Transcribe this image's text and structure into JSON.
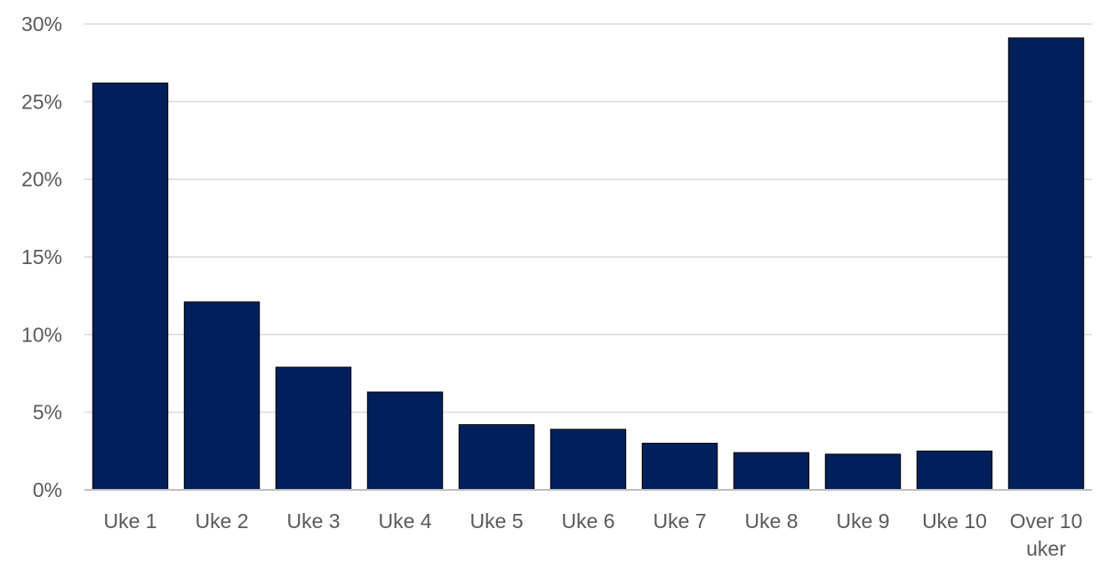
{
  "chart_data": {
    "type": "bar",
    "categories": [
      "Uke 1",
      "Uke 2",
      "Uke 3",
      "Uke 4",
      "Uke 5",
      "Uke 6",
      "Uke 7",
      "Uke 8",
      "Uke 9",
      "Uke 10",
      "Over 10 uker"
    ],
    "series": [
      {
        "values": [
          26.2,
          12.1,
          7.9,
          6.3,
          4.2,
          3.9,
          3.0,
          2.4,
          2.3,
          2.5,
          29.1
        ],
        "color": "#00205b"
      }
    ],
    "ylim": [
      0,
      30
    ],
    "yticks": [
      0,
      5,
      10,
      15,
      20,
      25,
      30
    ],
    "ytick_labels": [
      "0%",
      "5%",
      "10%",
      "15%",
      "20%",
      "25%",
      "30%"
    ],
    "grid": true,
    "legend": "none",
    "title": "",
    "xlabel": "",
    "ylabel": ""
  }
}
